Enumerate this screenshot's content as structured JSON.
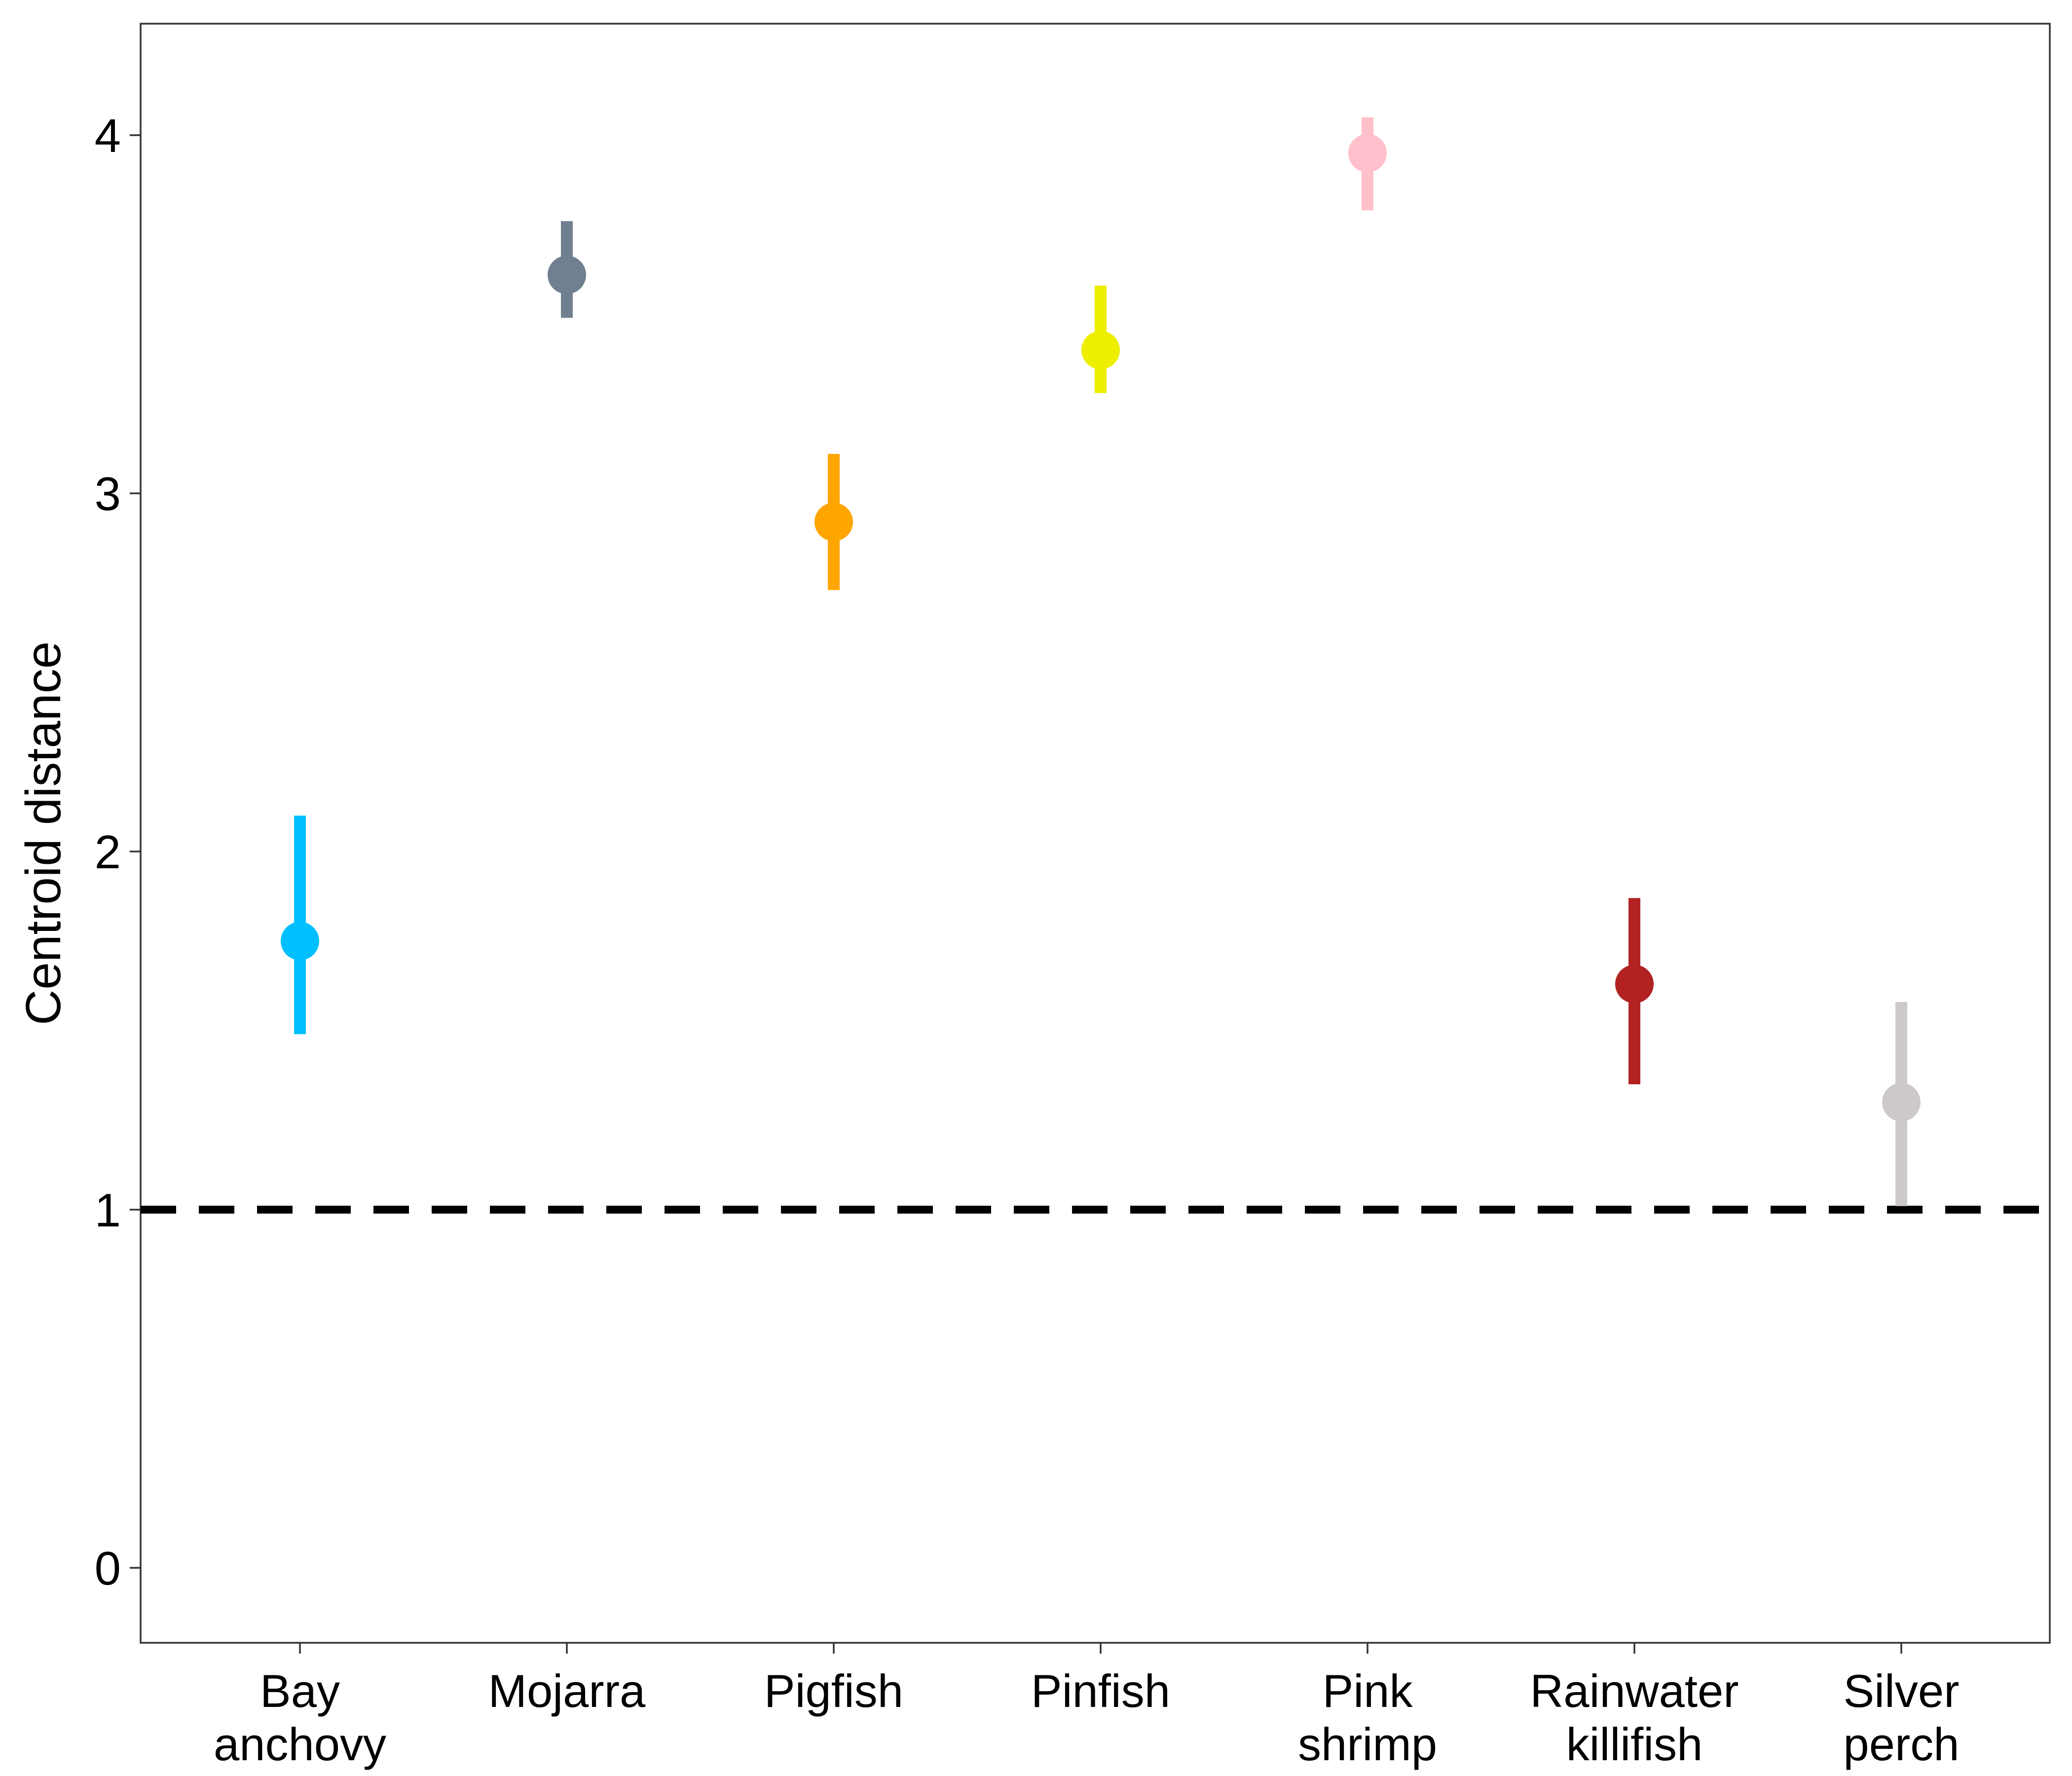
{
  "chart_data": {
    "type": "scatter",
    "title": "",
    "xlabel": "",
    "ylabel": "Centroid distance",
    "ylim": [
      -0.2,
      4.3
    ],
    "yticks": [
      0,
      1,
      2,
      3,
      4
    ],
    "grid": false,
    "legend": "none",
    "reference_line": {
      "y": 1,
      "style": "dashed",
      "color": "#000000"
    },
    "categories": [
      {
        "lines": [
          "Bay",
          "anchovy"
        ],
        "value": 1.75,
        "lower": 1.49,
        "upper": 2.1,
        "color": "#00BFFF"
      },
      {
        "lines": [
          "Mojarra"
        ],
        "value": 3.61,
        "lower": 3.49,
        "upper": 3.76,
        "color": "#708090"
      },
      {
        "lines": [
          "Pigfish"
        ],
        "value": 2.92,
        "lower": 2.73,
        "upper": 3.11,
        "color": "#FFA500"
      },
      {
        "lines": [
          "Pinfish"
        ],
        "value": 3.4,
        "lower": 3.28,
        "upper": 3.58,
        "color": "#EEEE00"
      },
      {
        "lines": [
          "Pink",
          "shrimp"
        ],
        "value": 3.95,
        "lower": 3.79,
        "upper": 4.05,
        "color": "#FFC0CB"
      },
      {
        "lines": [
          "Rainwater",
          "killifish"
        ],
        "value": 1.63,
        "lower": 1.35,
        "upper": 1.87,
        "color": "#B22222"
      },
      {
        "lines": [
          "Silver",
          "perch"
        ],
        "value": 1.3,
        "lower": 1.01,
        "upper": 1.58,
        "color": "#CDC9C9"
      }
    ]
  }
}
